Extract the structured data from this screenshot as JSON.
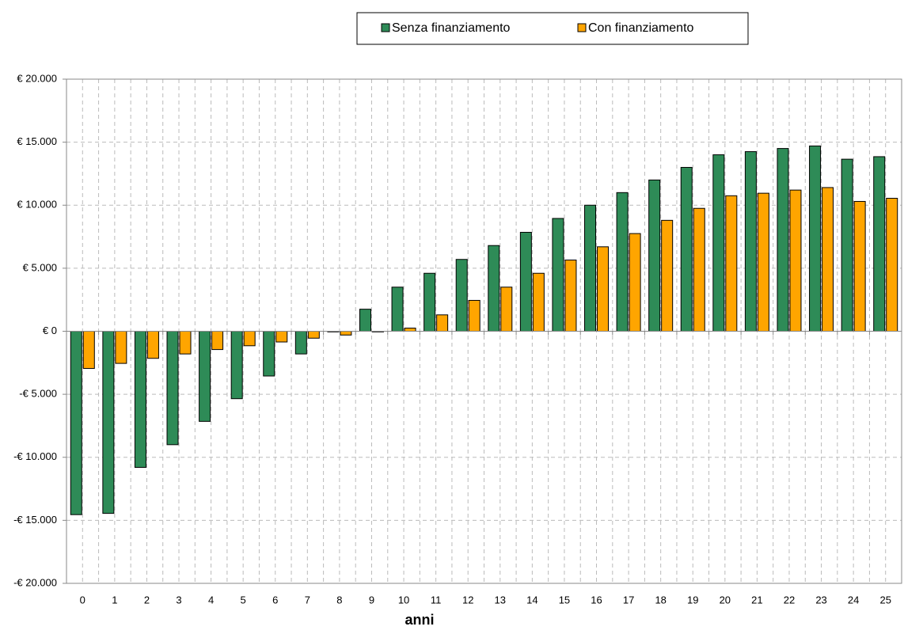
{
  "chart_data": {
    "type": "bar",
    "x_label": "anni",
    "categories": [
      "0",
      "1",
      "2",
      "3",
      "4",
      "5",
      "6",
      "7",
      "8",
      "9",
      "10",
      "11",
      "12",
      "13",
      "14",
      "15",
      "16",
      "17",
      "18",
      "19",
      "20",
      "21",
      "22",
      "23",
      "24",
      "25"
    ],
    "series": [
      {
        "name": "Senza finanziamento",
        "color": "#2e8b57",
        "values": [
          -14550,
          -14450,
          -10800,
          -9000,
          -7150,
          -5350,
          -3550,
          -1800,
          -50,
          1750,
          3500,
          4600,
          5700,
          6800,
          7850,
          8950,
          10000,
          11000,
          12000,
          13000,
          14000,
          14250,
          14500,
          14700,
          13650,
          13850
        ]
      },
      {
        "name": "Con finanziamento",
        "color": "#ffa500",
        "values": [
          -2950,
          -2550,
          -2150,
          -1800,
          -1450,
          -1150,
          -850,
          -550,
          -300,
          -50,
          250,
          1300,
          2450,
          3500,
          4600,
          5650,
          6700,
          7750,
          8800,
          9750,
          10750,
          10950,
          11200,
          11400,
          10300,
          10550
        ]
      }
    ],
    "ylim": [
      -20000,
      20000
    ],
    "yticks": [
      {
        "value": -20000,
        "label": "-€ 20.000"
      },
      {
        "value": -15000,
        "label": "-€ 15.000"
      },
      {
        "value": -10000,
        "label": "-€ 10.000"
      },
      {
        "value": -5000,
        "label": "-€ 5.000"
      },
      {
        "value": 0,
        "label": "€ 0"
      },
      {
        "value": 5000,
        "label": "€ 5.000"
      },
      {
        "value": 10000,
        "label": "€ 10.000"
      },
      {
        "value": 15000,
        "label": "€ 15.000"
      },
      {
        "value": 20000,
        "label": "€ 20.000"
      }
    ],
    "grid": true,
    "legend": "top"
  }
}
